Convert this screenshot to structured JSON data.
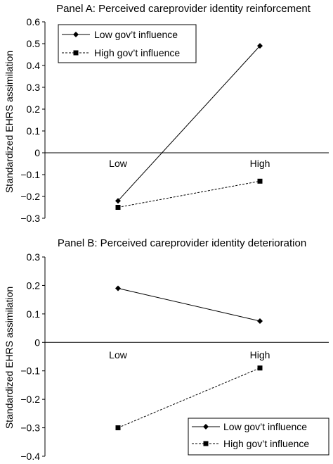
{
  "chart_data": [
    {
      "type": "line",
      "title": "Panel A: Perceived careprovider identity reinforcement",
      "ylabel": "Standardized EHRS assimilation",
      "xlabel": "",
      "categories": [
        "Low",
        "High"
      ],
      "ylim": [
        -0.3,
        0.6
      ],
      "yticks": [
        "0.6",
        "0.5",
        "0.4",
        "0.3",
        "0.2",
        "0.1",
        "0",
        "-0.1",
        "-0.2",
        "-0.3"
      ],
      "grid": false,
      "legend_position": "top-left",
      "series": [
        {
          "name": "Low gov’t influence",
          "values": [
            -0.22,
            0.49
          ],
          "marker": "diamond",
          "dash": "solid"
        },
        {
          "name": "High gov’t influence",
          "values": [
            -0.25,
            -0.13
          ],
          "marker": "square",
          "dash": "dashed"
        }
      ]
    },
    {
      "type": "line",
      "title": "Panel B: Perceived careprovider identity deterioration",
      "ylabel": "Standardized EHRS assimilation",
      "xlabel": "",
      "categories": [
        "Low",
        "High"
      ],
      "ylim": [
        -0.4,
        0.3
      ],
      "yticks": [
        "0.3",
        "0.2",
        "0.1",
        "0",
        "-0.1",
        "-0.2",
        "-0.3",
        "-0.4"
      ],
      "grid": false,
      "legend_position": "bottom-right",
      "series": [
        {
          "name": "Low gov’t influence",
          "values": [
            0.19,
            0.075
          ],
          "marker": "diamond",
          "dash": "solid"
        },
        {
          "name": "High gov’t influence",
          "values": [
            -0.3,
            -0.09
          ],
          "marker": "square",
          "dash": "dashed"
        }
      ]
    }
  ]
}
